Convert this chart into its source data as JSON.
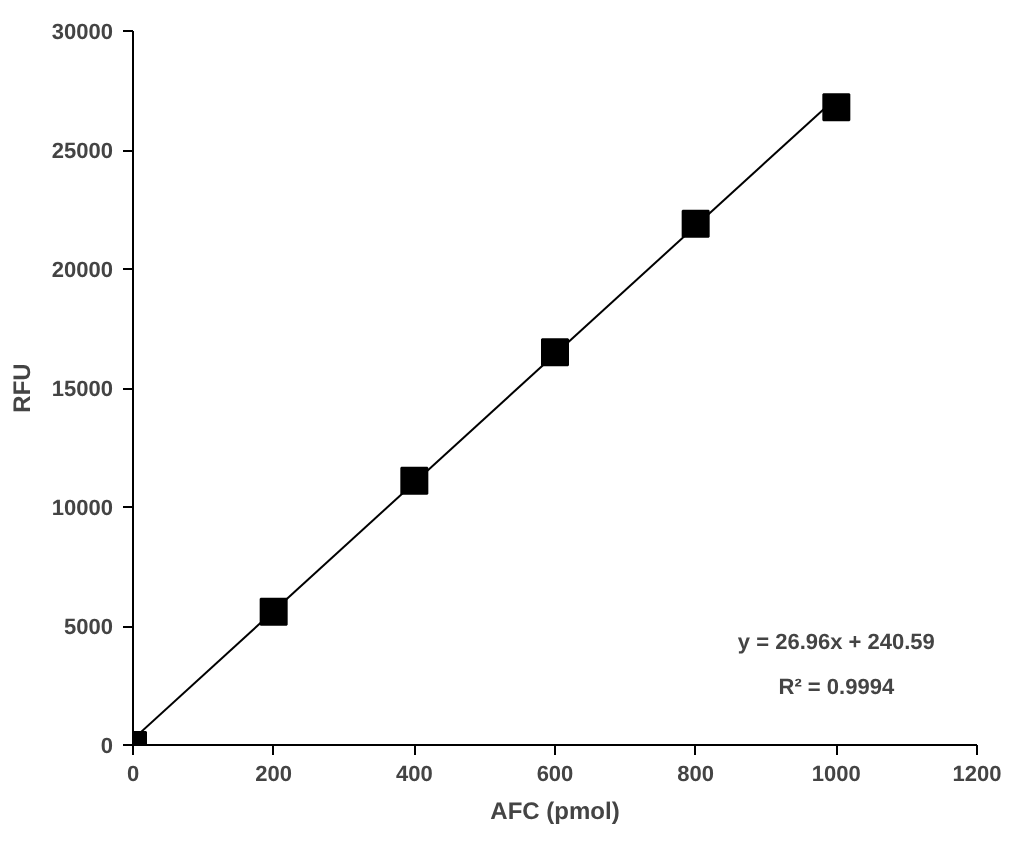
{
  "chart_data": {
    "type": "scatter",
    "xlabel": "AFC (pmol)",
    "ylabel": "RFU",
    "series": [
      {
        "color": "#000000",
        "marker": "square",
        "x": [
          0,
          200,
          400,
          600,
          800,
          1000
        ],
        "values": [
          0,
          5600,
          11100,
          16500,
          21900,
          26800
        ]
      },
      {
        "type": "line",
        "color": "#000000",
        "x": [
          0,
          1000
        ],
        "values": [
          240,
          27200
        ]
      }
    ],
    "annotations": [
      "y = 26.96x + 240.59",
      "R² = 0.9994"
    ],
    "xlim": [
      0,
      1200
    ],
    "xticks": [
      0,
      200,
      400,
      600,
      800,
      1000,
      1200
    ],
    "ylim": [
      0,
      30000
    ],
    "yticks": [
      0,
      5000,
      10000,
      15000,
      20000,
      25000,
      30000
    ],
    "grid": false
  }
}
